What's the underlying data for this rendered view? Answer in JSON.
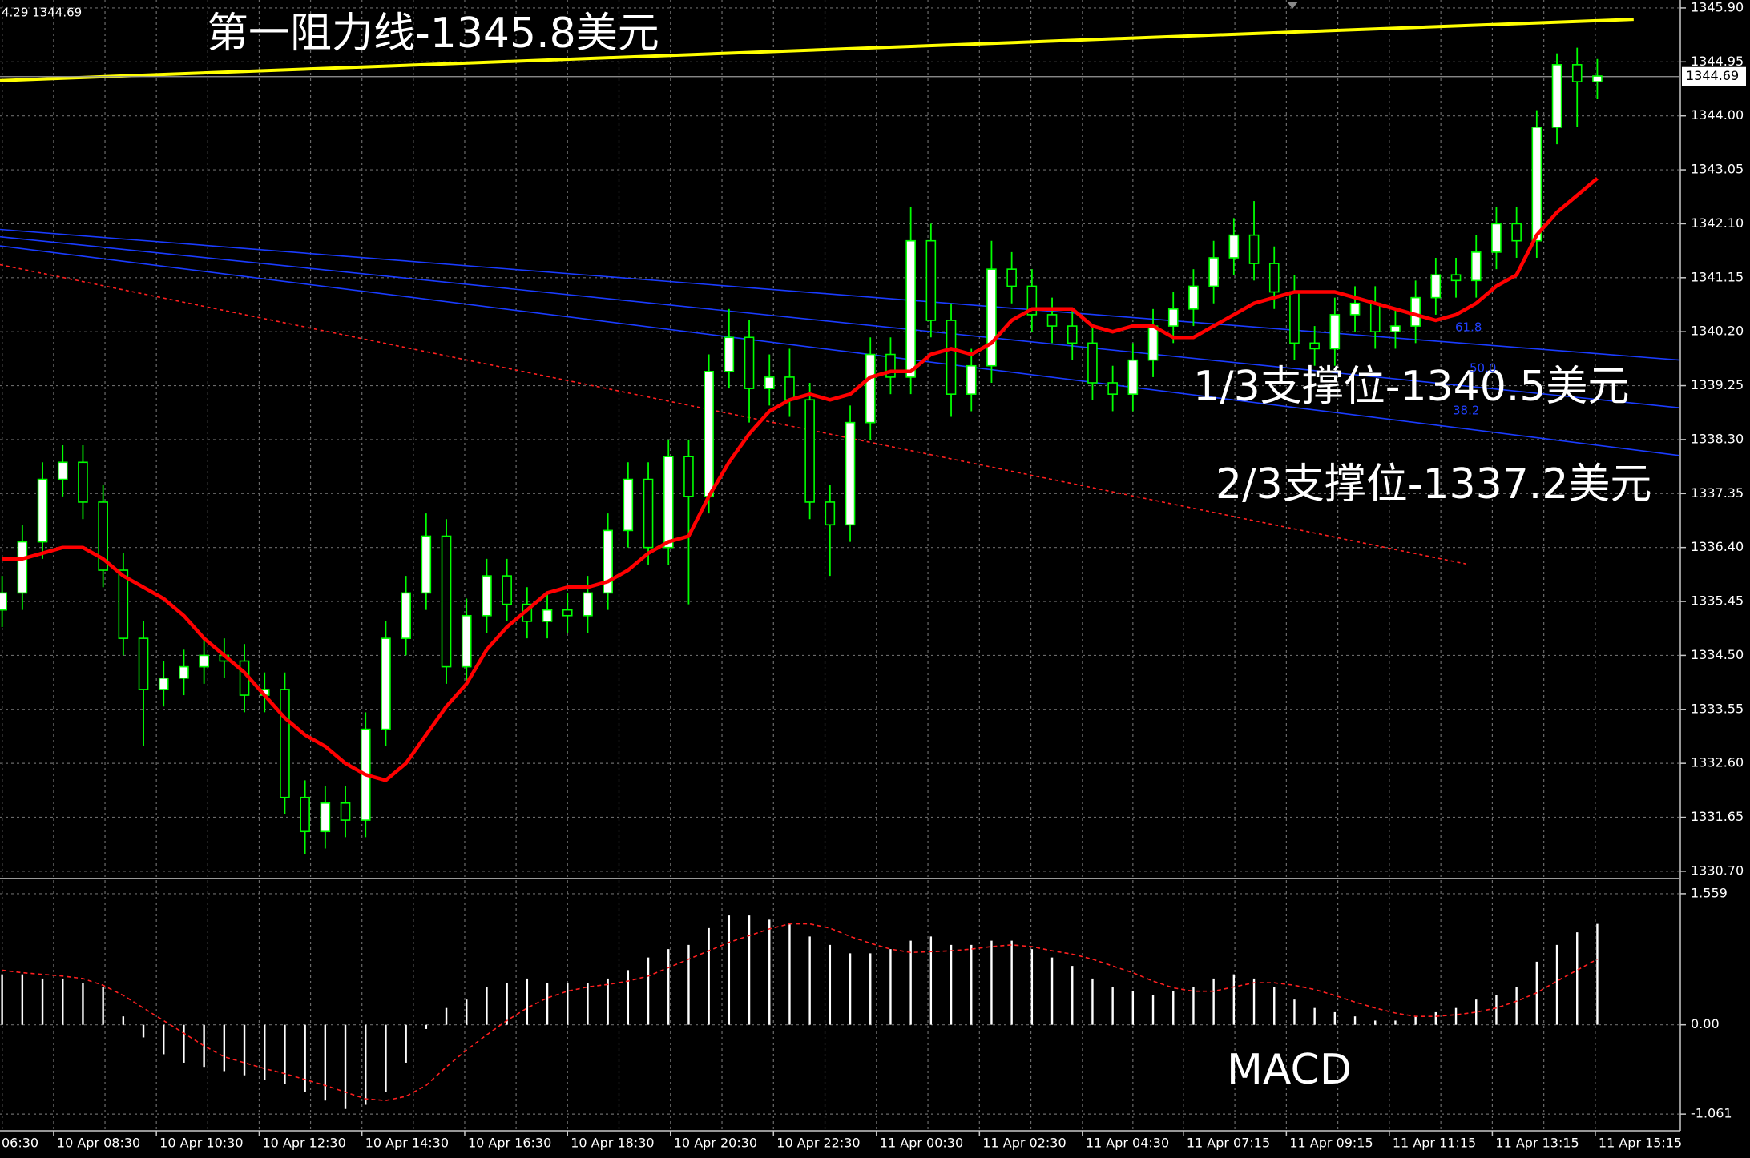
{
  "chart_data": [
    {
      "type": "candlestick",
      "label": "4.29 1344.69",
      "up_color": "#ffffff",
      "down_color": "#000000",
      "wick_color": "#00ff00",
      "values": [
        [
          1335.3,
          1335.9,
          1335.0,
          1335.6
        ],
        [
          1335.6,
          1336.8,
          1335.3,
          1336.5
        ],
        [
          1336.5,
          1337.9,
          1336.2,
          1337.6
        ],
        [
          1337.6,
          1338.2,
          1337.3,
          1337.9
        ],
        [
          1337.9,
          1338.2,
          1336.9,
          1337.2
        ],
        [
          1337.2,
          1337.5,
          1335.7,
          1336.0
        ],
        [
          1336.0,
          1336.3,
          1334.5,
          1334.8
        ],
        [
          1334.8,
          1335.1,
          1332.9,
          1333.9
        ],
        [
          1333.9,
          1334.4,
          1333.6,
          1334.1
        ],
        [
          1334.1,
          1334.6,
          1333.8,
          1334.3
        ],
        [
          1334.3,
          1334.8,
          1334.0,
          1334.5
        ],
        [
          1334.5,
          1334.8,
          1334.1,
          1334.4
        ],
        [
          1334.4,
          1334.7,
          1333.5,
          1333.8
        ],
        [
          1333.8,
          1334.2,
          1333.5,
          1333.9
        ],
        [
          1333.9,
          1334.2,
          1331.7,
          1332.0
        ],
        [
          1332.0,
          1332.3,
          1331.0,
          1331.4
        ],
        [
          1331.4,
          1332.2,
          1331.1,
          1331.9
        ],
        [
          1331.9,
          1332.2,
          1331.3,
          1331.6
        ],
        [
          1331.6,
          1333.5,
          1331.3,
          1333.2
        ],
        [
          1333.2,
          1335.1,
          1332.9,
          1334.8
        ],
        [
          1334.8,
          1335.9,
          1334.5,
          1335.6
        ],
        [
          1335.6,
          1337.0,
          1335.3,
          1336.6
        ],
        [
          1336.6,
          1336.9,
          1334.0,
          1334.3
        ],
        [
          1334.3,
          1335.5,
          1334.0,
          1335.2
        ],
        [
          1335.2,
          1336.2,
          1334.9,
          1335.9
        ],
        [
          1335.9,
          1336.2,
          1335.1,
          1335.4
        ],
        [
          1335.4,
          1335.7,
          1334.8,
          1335.1
        ],
        [
          1335.1,
          1335.6,
          1334.8,
          1335.3
        ],
        [
          1335.3,
          1335.6,
          1334.9,
          1335.2
        ],
        [
          1335.2,
          1335.9,
          1334.9,
          1335.6
        ],
        [
          1335.6,
          1337.0,
          1335.3,
          1336.7
        ],
        [
          1336.7,
          1337.9,
          1336.4,
          1337.6
        ],
        [
          1337.6,
          1337.9,
          1336.1,
          1336.4
        ],
        [
          1336.4,
          1338.3,
          1336.1,
          1338.0
        ],
        [
          1338.0,
          1338.3,
          1335.4,
          1337.3
        ],
        [
          1337.3,
          1339.8,
          1337.0,
          1339.5
        ],
        [
          1339.5,
          1340.6,
          1339.2,
          1340.1
        ],
        [
          1340.1,
          1340.4,
          1338.6,
          1339.2
        ],
        [
          1339.2,
          1339.8,
          1338.9,
          1339.4
        ],
        [
          1339.4,
          1339.9,
          1338.7,
          1339.0
        ],
        [
          1339.0,
          1339.3,
          1336.9,
          1337.2
        ],
        [
          1337.2,
          1337.5,
          1335.9,
          1336.8
        ],
        [
          1336.8,
          1338.9,
          1336.5,
          1338.6
        ],
        [
          1338.6,
          1340.1,
          1338.3,
          1339.8
        ],
        [
          1339.8,
          1340.1,
          1339.1,
          1339.4
        ],
        [
          1339.4,
          1342.4,
          1339.1,
          1341.8
        ],
        [
          1341.8,
          1342.1,
          1340.1,
          1340.4
        ],
        [
          1340.4,
          1340.7,
          1338.7,
          1339.1
        ],
        [
          1339.1,
          1339.9,
          1338.8,
          1339.6
        ],
        [
          1339.6,
          1341.8,
          1339.3,
          1341.3
        ],
        [
          1341.3,
          1341.6,
          1340.7,
          1341.0
        ],
        [
          1341.0,
          1341.3,
          1340.2,
          1340.5
        ],
        [
          1340.5,
          1340.8,
          1340.0,
          1340.3
        ],
        [
          1340.3,
          1340.6,
          1339.7,
          1340.0
        ],
        [
          1340.0,
          1340.3,
          1339.0,
          1339.3
        ],
        [
          1339.3,
          1339.6,
          1338.8,
          1339.1
        ],
        [
          1339.1,
          1340.0,
          1338.8,
          1339.7
        ],
        [
          1339.7,
          1340.6,
          1339.4,
          1340.3
        ],
        [
          1340.3,
          1340.9,
          1340.0,
          1340.6
        ],
        [
          1340.6,
          1341.3,
          1340.3,
          1341.0
        ],
        [
          1341.0,
          1341.8,
          1340.7,
          1341.5
        ],
        [
          1341.5,
          1342.2,
          1341.2,
          1341.9
        ],
        [
          1341.9,
          1342.5,
          1341.1,
          1341.4
        ],
        [
          1341.4,
          1341.7,
          1340.6,
          1340.9
        ],
        [
          1340.9,
          1341.2,
          1339.7,
          1340.0
        ],
        [
          1340.0,
          1340.3,
          1339.6,
          1339.9
        ],
        [
          1339.9,
          1340.8,
          1339.6,
          1340.5
        ],
        [
          1340.5,
          1341.0,
          1340.2,
          1340.7
        ],
        [
          1340.7,
          1341.0,
          1339.9,
          1340.2
        ],
        [
          1340.2,
          1340.6,
          1339.9,
          1340.3
        ],
        [
          1340.3,
          1341.1,
          1340.0,
          1340.8
        ],
        [
          1340.8,
          1341.5,
          1340.5,
          1341.2
        ],
        [
          1341.2,
          1341.5,
          1340.8,
          1341.1
        ],
        [
          1341.1,
          1341.9,
          1340.8,
          1341.6
        ],
        [
          1341.6,
          1342.4,
          1341.3,
          1342.1
        ],
        [
          1342.1,
          1342.4,
          1341.5,
          1341.8
        ],
        [
          1341.8,
          1344.1,
          1341.5,
          1343.8
        ],
        [
          1343.8,
          1345.1,
          1343.5,
          1344.9
        ],
        [
          1344.9,
          1345.2,
          1343.8,
          1344.6
        ],
        [
          1344.6,
          1345.0,
          1344.3,
          1344.7
        ]
      ],
      "series": [
        {
          "color": "#ff0000",
          "values": [
            1336.2,
            1336.2,
            1336.3,
            1336.4,
            1336.4,
            1336.2,
            1335.9,
            1335.7,
            1335.5,
            1335.2,
            1334.8,
            1334.5,
            1334.2,
            1333.8,
            1333.4,
            1333.1,
            1332.9,
            1332.6,
            1332.4,
            1332.3,
            1332.6,
            1333.1,
            1333.6,
            1334.0,
            1334.6,
            1335.0,
            1335.3,
            1335.6,
            1335.7,
            1335.7,
            1335.8,
            1336.0,
            1336.3,
            1336.5,
            1336.6,
            1337.3,
            1337.9,
            1338.4,
            1338.8,
            1339.0,
            1339.1,
            1339.0,
            1339.1,
            1339.4,
            1339.5,
            1339.5,
            1339.8,
            1339.9,
            1339.8,
            1340.0,
            1340.4,
            1340.6,
            1340.6,
            1340.6,
            1340.3,
            1340.2,
            1340.3,
            1340.3,
            1340.1,
            1340.1,
            1340.3,
            1340.5,
            1340.7,
            1340.8,
            1340.9,
            1340.9,
            1340.9,
            1340.8,
            1340.7,
            1340.6,
            1340.5,
            1340.4,
            1340.5,
            1340.7,
            1341.0,
            1341.2,
            1341.9,
            1342.3,
            1342.6,
            1342.9
          ]
        }
      ],
      "trendlines": [
        {
          "color": "#ffff00",
          "x": [
            -0.105,
            80.8
          ],
          "values": [
            1344.62,
            1345.7
          ]
        },
        {
          "color": "#1a3cff",
          "x": [
            -0.105,
            83.07
          ],
          "values": [
            1342.0,
            1339.7
          ]
        },
        {
          "color": "#1a3cff",
          "x": [
            -0.105,
            83.07
          ],
          "values": [
            1341.87,
            1338.86
          ]
        },
        {
          "color": "#1a3cff",
          "x": [
            -0.105,
            83.07
          ],
          "values": [
            1341.71,
            1338.02
          ]
        },
        {
          "color": "#ff2020",
          "dashed": true,
          "x": [
            -0.105,
            72.5
          ],
          "values": [
            1341.38,
            1336.11
          ]
        }
      ],
      "last_price": 1344.69,
      "annotations": [
        "第一阻力线-1345.8美元",
        "1/3支撑位-1340.5美元",
        "2/3支撑位-1337.2美元"
      ],
      "fib_labels": [
        "61.8",
        "50.0",
        "38.2"
      ],
      "ylim": [
        1330.6,
        1346.04
      ],
      "yticks": [
        {
          "value": 1345.9,
          "label": "1345.90"
        },
        1344.95,
        {
          "value": 1344.0,
          "label": "1344.00"
        },
        1343.05,
        {
          "value": 1342.1,
          "label": "1342.10"
        },
        1341.15,
        {
          "value": 1340.2,
          "label": "1340.20"
        },
        1339.25,
        {
          "value": 1338.3,
          "label": "1338.30"
        },
        1337.35,
        {
          "value": 1336.4,
          "label": "1336.40"
        },
        1335.45,
        {
          "value": 1334.5,
          "label": "1334.50"
        },
        1333.55,
        {
          "value": 1332.6,
          "label": "1332.60"
        },
        1331.65,
        {
          "value": 1330.7,
          "label": "1330.70"
        }
      ],
      "xlim": [
        -0.105,
        83.07
      ],
      "xticks": [
        {
          "value": -2.54,
          "label": "06:30"
        },
        {
          "value": 2.55,
          "label": "10 Apr 08:30"
        },
        {
          "value": 7.64,
          "label": "10 Apr 10:30"
        },
        {
          "value": 12.73,
          "label": "10 Apr 12:30"
        },
        {
          "value": 17.82,
          "label": "10 Apr 14:30"
        },
        {
          "value": 22.91,
          "label": "10 Apr 16:30"
        },
        {
          "value": 28.0,
          "label": "10 Apr 18:30"
        },
        {
          "value": 33.1,
          "label": "10 Apr 20:30"
        },
        {
          "value": 38.2,
          "label": "10 Apr 22:30"
        },
        {
          "value": 43.3,
          "label": "11 Apr 00:30"
        },
        {
          "value": 48.4,
          "label": "11 Apr 02:30"
        },
        {
          "value": 53.5,
          "label": "11 Apr 04:30"
        },
        {
          "value": 58.5,
          "label": "11 Apr 07:15"
        },
        {
          "value": 63.6,
          "label": "11 Apr 09:15"
        },
        {
          "value": 68.7,
          "label": "11 Apr 11:15"
        },
        {
          "value": 73.8,
          "label": "11 Apr 13:15"
        },
        {
          "value": 78.9,
          "label": "11 Apr 15:15"
        }
      ],
      "grid": true
    },
    {
      "type": "macd",
      "title": "MACD",
      "color": "#ffffff",
      "values": [
        0.6,
        0.6,
        0.55,
        0.55,
        0.5,
        0.45,
        0.1,
        -0.15,
        -0.35,
        -0.45,
        -0.5,
        -0.55,
        -0.6,
        -0.65,
        -0.7,
        -0.8,
        -0.9,
        -1.0,
        -0.95,
        -0.8,
        -0.45,
        -0.05,
        0.2,
        0.3,
        0.45,
        0.5,
        0.55,
        0.5,
        0.5,
        0.5,
        0.55,
        0.65,
        0.8,
        0.9,
        0.95,
        1.15,
        1.3,
        1.3,
        1.25,
        1.2,
        1.05,
        0.95,
        0.85,
        0.85,
        0.9,
        1.0,
        1.05,
        0.95,
        0.95,
        1.0,
        1.0,
        0.9,
        0.8,
        0.7,
        0.55,
        0.45,
        0.4,
        0.35,
        0.4,
        0.45,
        0.55,
        0.6,
        0.55,
        0.45,
        0.3,
        0.2,
        0.15,
        0.1,
        0.05,
        0.05,
        0.1,
        0.15,
        0.2,
        0.3,
        0.35,
        0.45,
        0.75,
        0.95,
        1.1,
        1.2
      ],
      "series": [
        {
          "color": "#ff2020",
          "dashed": true,
          "values": [
            0.65,
            0.62,
            0.6,
            0.58,
            0.55,
            0.47,
            0.35,
            0.2,
            0.05,
            -0.1,
            -0.25,
            -0.38,
            -0.45,
            -0.52,
            -0.58,
            -0.65,
            -0.72,
            -0.8,
            -0.88,
            -0.9,
            -0.85,
            -0.72,
            -0.5,
            -0.3,
            -0.12,
            0.05,
            0.2,
            0.32,
            0.4,
            0.45,
            0.48,
            0.52,
            0.58,
            0.68,
            0.78,
            0.88,
            0.98,
            1.06,
            1.14,
            1.2,
            1.2,
            1.15,
            1.05,
            0.97,
            0.9,
            0.86,
            0.87,
            0.88,
            0.9,
            0.93,
            0.95,
            0.93,
            0.88,
            0.84,
            0.78,
            0.7,
            0.62,
            0.52,
            0.44,
            0.4,
            0.4,
            0.45,
            0.5,
            0.5,
            0.47,
            0.42,
            0.35,
            0.27,
            0.2,
            0.14,
            0.1,
            0.1,
            0.12,
            0.15,
            0.2,
            0.28,
            0.38,
            0.52,
            0.65,
            0.78
          ]
        }
      ],
      "ylim": [
        -1.25,
        1.72
      ],
      "yticks": [
        1.559,
        {
          "value": 0,
          "label": "0.00"
        },
        -1.061
      ],
      "grid": true
    }
  ]
}
